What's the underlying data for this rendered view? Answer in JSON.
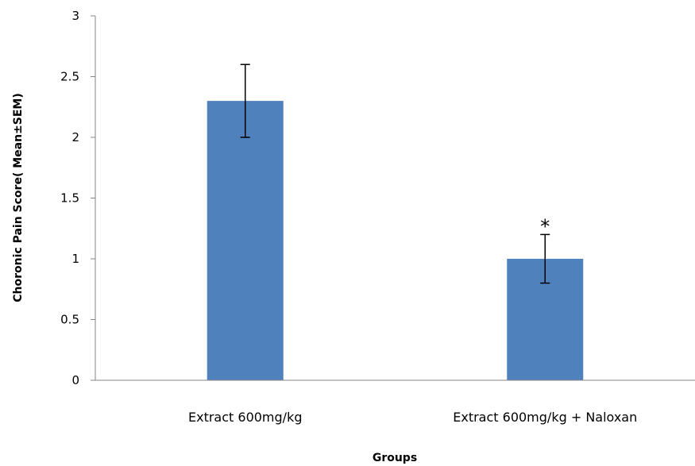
{
  "chart_data": {
    "type": "bar",
    "title": "",
    "xlabel": "Groups",
    "ylabel": "Choronic Pain Score( Mean±SEM)",
    "categories": [
      "Extract 600mg/kg",
      "Extract 600mg/kg + Naloxan"
    ],
    "values": [
      2.3,
      1.0
    ],
    "error": [
      0.3,
      0.2
    ],
    "ylim": [
      0,
      3
    ],
    "yticks": [
      "0",
      "0.5",
      "1",
      "1.5",
      "2",
      "2.5",
      "3"
    ],
    "ytick_values": [
      0,
      0.5,
      1,
      1.5,
      2,
      2.5,
      3
    ],
    "annotations": [
      "",
      "*"
    ],
    "bar_color": "#4F81BD",
    "grid": false,
    "legend": "none"
  }
}
